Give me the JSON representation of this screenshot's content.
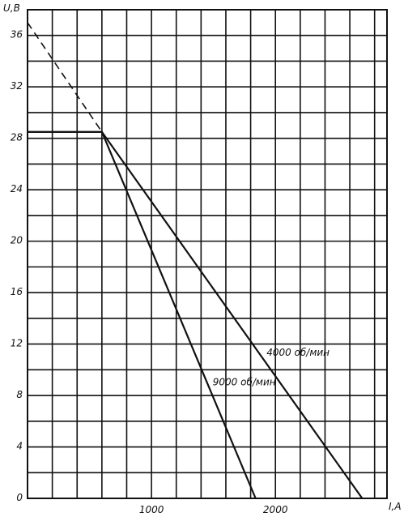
{
  "chart_data": {
    "type": "line",
    "title": "",
    "xlabel": "I,A",
    "ylabel": "U,B",
    "xlim": [
      0,
      2900
    ],
    "ylim": [
      0,
      38
    ],
    "x_ticks": [
      {
        "value": 1000,
        "label": "1000"
      },
      {
        "value": 2000,
        "label": "2000"
      }
    ],
    "y_ticks": [
      {
        "value": 0,
        "label": "0"
      },
      {
        "value": 4,
        "label": "4"
      },
      {
        "value": 8,
        "label": "8"
      },
      {
        "value": 12,
        "label": "12"
      },
      {
        "value": 16,
        "label": "16"
      },
      {
        "value": 20,
        "label": "20"
      },
      {
        "value": 24,
        "label": "24"
      },
      {
        "value": 28,
        "label": "28"
      },
      {
        "value": 32,
        "label": "32"
      },
      {
        "value": 36,
        "label": "36"
      }
    ],
    "grid": {
      "x_step": 200,
      "y_step": 2
    },
    "series": [
      {
        "name": "4000 об/мин",
        "points": [
          [
            0,
            28.5
          ],
          [
            600,
            28.5
          ],
          [
            2700,
            0
          ]
        ]
      },
      {
        "name": "9000 об/мин",
        "points": [
          [
            0,
            28.5
          ],
          [
            600,
            28.5
          ],
          [
            1840,
            0
          ]
        ]
      }
    ],
    "extrapolation": {
      "style": "dashed",
      "points": [
        [
          0,
          37
        ],
        [
          600,
          28.5
        ]
      ]
    },
    "annotations": [
      {
        "text": "4000 об/мин",
        "series": 0
      },
      {
        "text": "9000 об/мин",
        "series": 1
      }
    ]
  }
}
